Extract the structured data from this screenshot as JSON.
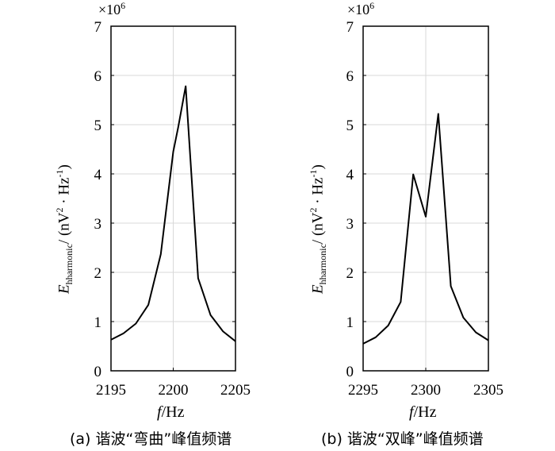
{
  "chart_data": [
    {
      "type": "line",
      "title": "",
      "caption": "(a) 谐波“弯曲”峰值频谱",
      "xlabel_var": "f",
      "xlabel_unit": "/Hz",
      "ylabel_var": "E",
      "ylabel_sub": "hharmonic",
      "ylabel_unit": "/ (nV",
      "ylabel_rest": " · Hz",
      "ylabel_end": ")",
      "y_multiplier": "×10",
      "y_multiplier_exp": "6",
      "xlim": [
        2195,
        2205
      ],
      "ylim": [
        0,
        7
      ],
      "xticks": [
        "2195",
        "2200",
        "2205"
      ],
      "yticks": [
        "0",
        "1",
        "2",
        "3",
        "4",
        "5",
        "6",
        "7"
      ],
      "grid": true,
      "x": [
        2195,
        2196,
        2197,
        2198,
        2199,
        2200,
        2200.4,
        2201,
        2202,
        2203,
        2204,
        2205
      ],
      "y": [
        0.63,
        0.76,
        0.96,
        1.34,
        2.37,
        4.45,
        4.95,
        5.78,
        1.88,
        1.13,
        0.8,
        0.6
      ]
    },
    {
      "type": "line",
      "title": "",
      "caption": "(b) 谐波“双峰”峰值频谱",
      "xlabel_var": "f",
      "xlabel_unit": "/Hz",
      "ylabel_var": "E",
      "ylabel_sub": "hharmonic",
      "ylabel_unit": "/ (nV",
      "ylabel_rest": " · Hz",
      "ylabel_end": ")",
      "y_multiplier": "×10",
      "y_multiplier_exp": "6",
      "xlim": [
        2295,
        2305
      ],
      "ylim": [
        0,
        7
      ],
      "xticks": [
        "2295",
        "2300",
        "2305"
      ],
      "yticks": [
        "0",
        "1",
        "2",
        "3",
        "4",
        "5",
        "6",
        "7"
      ],
      "grid": true,
      "x": [
        2295,
        2296,
        2297,
        2298,
        2299,
        2300,
        2301,
        2302,
        2303,
        2304,
        2305
      ],
      "y": [
        0.55,
        0.68,
        0.92,
        1.4,
        3.99,
        3.13,
        5.22,
        1.72,
        1.08,
        0.78,
        0.62
      ]
    }
  ]
}
